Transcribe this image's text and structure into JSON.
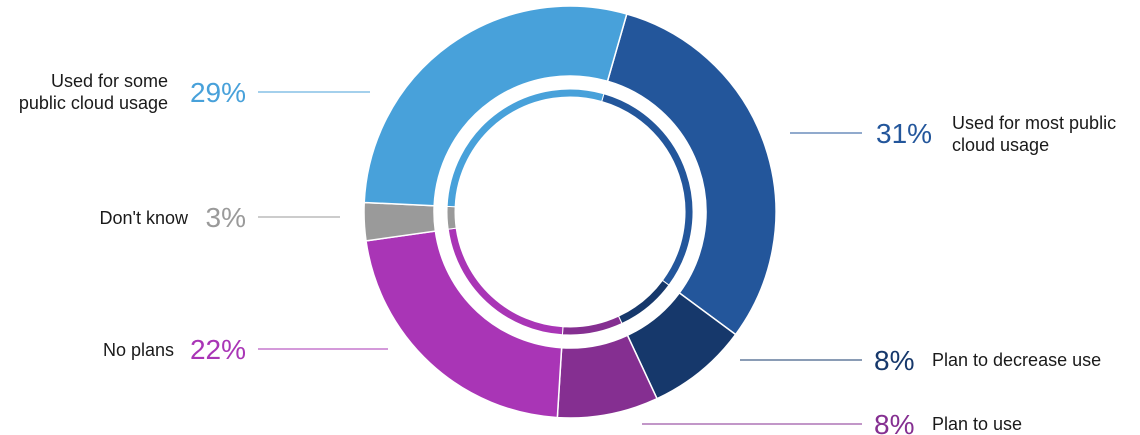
{
  "chart_data": {
    "type": "pie",
    "variant": "donut",
    "slices": [
      {
        "label_lines": [
          "Used for most public",
          "cloud usage"
        ],
        "pct_text": "31%",
        "value": 31,
        "color": "#23569b"
      },
      {
        "label_lines": [
          "Plan to decrease use"
        ],
        "pct_text": "8%",
        "value": 8,
        "color": "#16386b"
      },
      {
        "label_lines": [
          "Plan to use"
        ],
        "pct_text": "8%",
        "value": 8,
        "color": "#852f91"
      },
      {
        "label_lines": [
          "No plans"
        ],
        "pct_text": "22%",
        "value": 22,
        "color": "#a935b6"
      },
      {
        "label_lines": [
          "Don't know"
        ],
        "pct_text": "3%",
        "value": 3,
        "color": "#9a9a9a"
      },
      {
        "label_lines": [
          "Used for some",
          "public cloud usage"
        ],
        "pct_text": "29%",
        "value": 29,
        "color": "#48a1da"
      }
    ],
    "inner_ring": true
  }
}
